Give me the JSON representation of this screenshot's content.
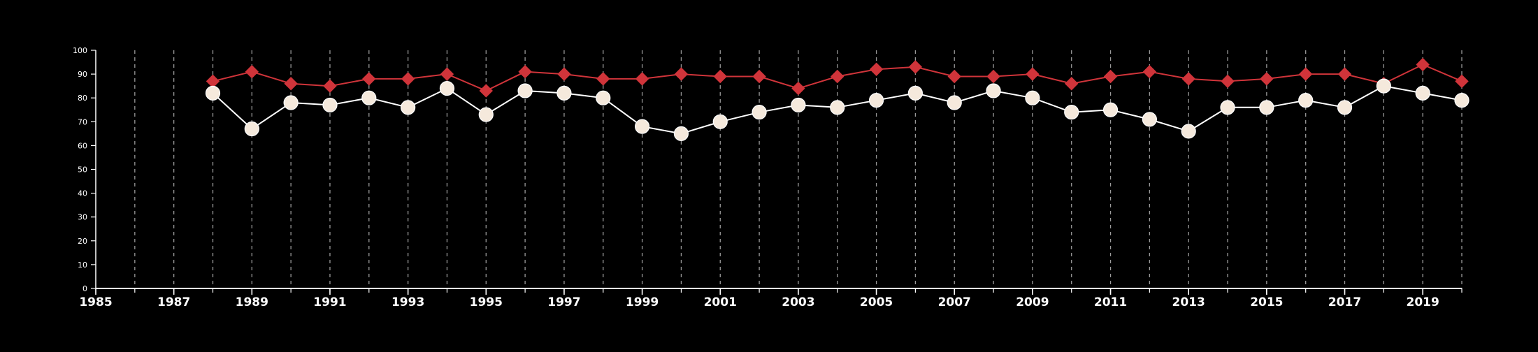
{
  "chart_data": {
    "type": "line",
    "title": "",
    "xlabel": "",
    "ylabel": "",
    "xlim": [
      1985,
      2020
    ],
    "ylim": [
      0,
      100
    ],
    "x_ticks": [
      1985,
      1987,
      1989,
      1991,
      1993,
      1995,
      1997,
      1999,
      2001,
      2003,
      2005,
      2007,
      2009,
      2011,
      2013,
      2015,
      2017,
      2019
    ],
    "y_ticks": [
      0,
      10,
      20,
      30,
      40,
      50,
      60,
      70,
      80,
      90,
      100
    ],
    "x_grid": "vertical dashed lines at every year",
    "legend": "none",
    "x": [
      1988,
      1989,
      1990,
      1991,
      1992,
      1993,
      1994,
      1995,
      1996,
      1997,
      1998,
      1999,
      2000,
      2001,
      2002,
      2003,
      2004,
      2005,
      2006,
      2007,
      2008,
      2009,
      2010,
      2011,
      2012,
      2013,
      2014,
      2015,
      2016,
      2017,
      2018,
      2019,
      2020
    ],
    "series": [
      {
        "marker": "diamond",
        "color": "#d0343a",
        "values": [
          87,
          91,
          86,
          85,
          88,
          88,
          90,
          83,
          91,
          90,
          88,
          88,
          90,
          89,
          89,
          84,
          89,
          92,
          93,
          89,
          89,
          90,
          86,
          89,
          91,
          88,
          87,
          88,
          90,
          90,
          86,
          94,
          87
        ]
      },
      {
        "marker": "circle",
        "color": "#f5e9dc",
        "line_color": "#ffffff",
        "values": [
          82,
          67,
          78,
          77,
          80,
          76,
          84,
          73,
          83,
          82,
          80,
          68,
          65,
          70,
          74,
          77,
          76,
          79,
          82,
          78,
          83,
          80,
          74,
          75,
          71,
          66,
          76,
          76,
          79,
          76,
          85,
          82,
          79
        ]
      }
    ]
  }
}
